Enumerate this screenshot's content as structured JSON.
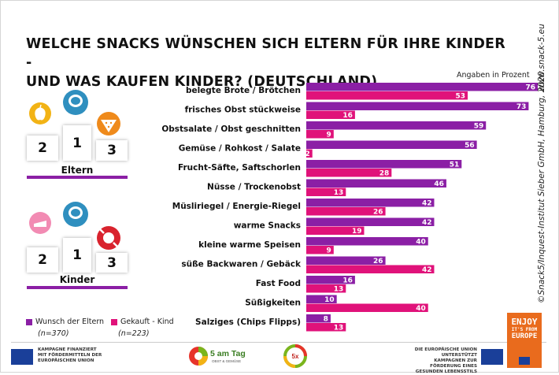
{
  "title_line1": "WELCHE SNACKS WÜNSCHEN SICH ELTERN FÜR IHRE KINDER -",
  "title_line2": "UND WAS KAUFEN KINDER? (DEUTSCHLAND)",
  "units_note": "Angaben in Prozent",
  "side_url": "www.snack-5.eu",
  "side_source": "©Snack5/Inquest-Institut Sieber GmbH, Hamburg, 2020",
  "colors": {
    "eltern": "#8b1fa5",
    "kind": "#e0127a",
    "bar_text": "#ffffff"
  },
  "podium_eltern": {
    "label": "Eltern",
    "ranks": [
      "2",
      "1",
      "3"
    ],
    "icons": [
      "apple-icon",
      "sandwich-icon",
      "watermelon-icon"
    ]
  },
  "podium_kinder": {
    "label": "Kinder",
    "ranks": [
      "2",
      "1",
      "3"
    ],
    "icons": [
      "cake-icon",
      "sandwich-icon",
      "candy-icon"
    ]
  },
  "legend": {
    "eltern_label": "Wunsch der Eltern",
    "eltern_n": "(n=370)",
    "kind_label": "Gekauft - Kind",
    "kind_n": "(n=223)"
  },
  "chart_data": {
    "type": "bar",
    "orientation": "horizontal",
    "categories": [
      "belegte Brote / Brötchen",
      "frisches Obst stückweise",
      "Obstsalate / Obst geschnitten",
      "Gemüse / Rohkost / Salate",
      "Frucht-Säfte, Saftschorlen",
      "Nüsse / Trockenobst",
      "Müsliriegel / Energie-Riegel",
      "warme Snacks",
      "kleine warme Speisen",
      "süße Backwaren / Gebäck",
      "Fast Food",
      "Süßigkeiten",
      "Salziges (Chips Flipps)"
    ],
    "series": [
      {
        "name": "Wunsch der Eltern",
        "values": [
          76,
          73,
          59,
          56,
          51,
          46,
          42,
          42,
          40,
          26,
          16,
          10,
          8
        ]
      },
      {
        "name": "Gekauft - Kind",
        "values": [
          53,
          16,
          9,
          2,
          28,
          13,
          26,
          19,
          9,
          42,
          13,
          40,
          13
        ]
      }
    ],
    "xlim": [
      0,
      76
    ]
  },
  "footer": {
    "eu_left_text": [
      "KAMPAGNE FINANZIERT",
      "MIT FÖRDERMITTELN DER",
      "EUROPÄISCHEN UNION"
    ],
    "logo1_text": "5 am Tag",
    "logo1_sub": "OBST & GEMÜSE",
    "logo2_text": "5x",
    "eu_right_text": [
      "DIE EUROPÄISCHE UNION UNTERSTÜTZT",
      "KAMPAGNEN ZUR FÖRDERUNG EINES",
      "GESUNDEN LEBENSSTILS"
    ],
    "enjoy_lines": [
      "ENJOY",
      "IT'S FROM",
      "EUROPE"
    ]
  }
}
